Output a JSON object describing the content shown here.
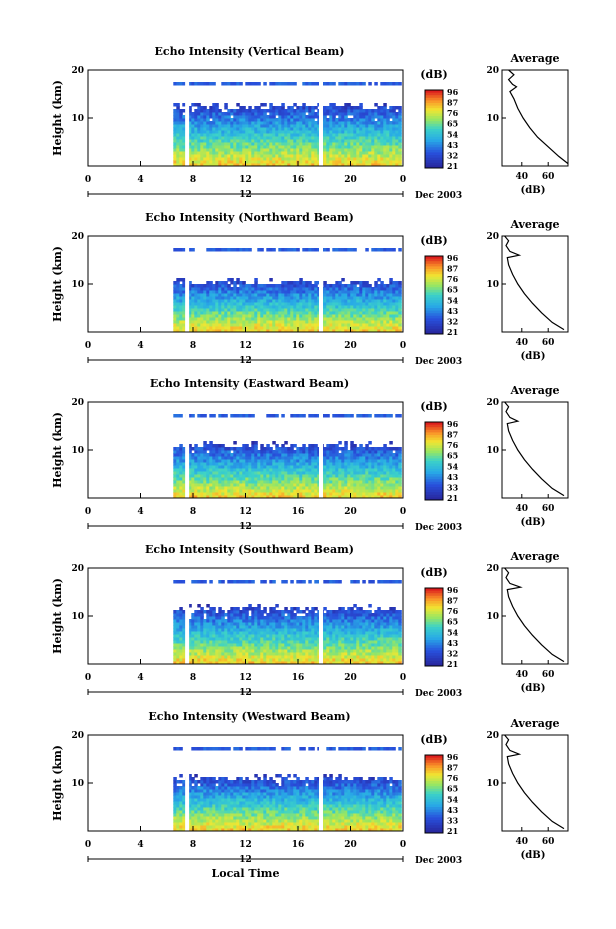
{
  "chart_data": [
    {
      "type": "heatmap",
      "title": "Echo Intensity (Vertical Beam)",
      "ylabel": "Height (km)",
      "x_ticks": [
        "0",
        "4",
        "8",
        "12",
        "16",
        "20",
        "0"
      ],
      "y_ticks": [
        "20",
        "10"
      ],
      "xlim": [
        0,
        24
      ],
      "ylim": [
        0,
        20
      ],
      "date_label": "Dec 2003",
      "noon_label": "12",
      "colorbar_unit": "(dB)",
      "colorbar_ticks": [
        "96",
        "87",
        "76",
        "65",
        "54",
        "43",
        "32",
        "21"
      ],
      "cloud_top_km": 13,
      "avg_panel": {
        "title": "Average",
        "xlabel": "(dB)",
        "x_ticks": [
          "40",
          "60"
        ],
        "y_ticks": [
          "20",
          "10"
        ],
        "xlim": [
          25,
          75
        ],
        "profile": [
          [
            75,
            0.5
          ],
          [
            68,
            2
          ],
          [
            60,
            4
          ],
          [
            52,
            6
          ],
          [
            46,
            8
          ],
          [
            41,
            10
          ],
          [
            37,
            12
          ],
          [
            34,
            14
          ],
          [
            31,
            15.5
          ],
          [
            36,
            16.5
          ],
          [
            33,
            17
          ],
          [
            30,
            18
          ],
          [
            34,
            19
          ],
          [
            30,
            20
          ]
        ]
      }
    },
    {
      "type": "heatmap",
      "title": "Echo Intensity (Northward Beam)",
      "ylabel": "Height (km)",
      "x_ticks": [
        "0",
        "4",
        "8",
        "12",
        "16",
        "20",
        "0"
      ],
      "y_ticks": [
        "20",
        "10"
      ],
      "xlim": [
        0,
        24
      ],
      "ylim": [
        0,
        20
      ],
      "date_label": "Dec 2003",
      "noon_label": "12",
      "colorbar_unit": "(dB)",
      "colorbar_ticks": [
        "96",
        "87",
        "76",
        "65",
        "54",
        "43",
        "32",
        "21"
      ],
      "cloud_top_km": 11,
      "avg_panel": {
        "title": "Average",
        "xlabel": "(dB)",
        "x_ticks": [
          "40",
          "60"
        ],
        "y_ticks": [
          "20",
          "10"
        ],
        "xlim": [
          25,
          75
        ],
        "profile": [
          [
            72,
            0.5
          ],
          [
            63,
            2
          ],
          [
            55,
            4
          ],
          [
            48,
            6
          ],
          [
            42,
            8
          ],
          [
            37,
            10
          ],
          [
            33,
            12
          ],
          [
            30,
            14
          ],
          [
            29,
            15.5
          ],
          [
            38,
            16
          ],
          [
            31,
            16.8
          ],
          [
            28,
            18
          ],
          [
            30,
            19
          ],
          [
            27,
            20
          ]
        ]
      }
    },
    {
      "type": "heatmap",
      "title": "Echo Intensity (Eastward Beam)",
      "ylabel": "Height (km)",
      "x_ticks": [
        "0",
        "4",
        "8",
        "12",
        "16",
        "20",
        "0"
      ],
      "y_ticks": [
        "20",
        "10"
      ],
      "xlim": [
        0,
        24
      ],
      "ylim": [
        0,
        20
      ],
      "date_label": "Dec 2003",
      "noon_label": "12",
      "colorbar_unit": "(dB)",
      "colorbar_ticks": [
        "96",
        "87",
        "76",
        "65",
        "54",
        "43",
        "33",
        "21"
      ],
      "cloud_top_km": 11.5,
      "avg_panel": {
        "title": "Average",
        "xlabel": "(dB)",
        "x_ticks": [
          "40",
          "60"
        ],
        "y_ticks": [
          "20",
          "10"
        ],
        "xlim": [
          25,
          75
        ],
        "profile": [
          [
            72,
            0.5
          ],
          [
            63,
            2
          ],
          [
            55,
            4
          ],
          [
            48,
            6
          ],
          [
            42,
            8
          ],
          [
            37,
            10
          ],
          [
            33,
            12
          ],
          [
            30,
            14
          ],
          [
            29,
            15.5
          ],
          [
            37,
            16
          ],
          [
            31,
            16.8
          ],
          [
            28,
            18
          ],
          [
            30,
            19
          ],
          [
            27,
            20
          ]
        ]
      }
    },
    {
      "type": "heatmap",
      "title": "Echo Intensity (Southward Beam)",
      "ylabel": "Height (km)",
      "x_ticks": [
        "0",
        "4",
        "8",
        "12",
        "16",
        "20",
        "0"
      ],
      "y_ticks": [
        "20",
        "10"
      ],
      "xlim": [
        0,
        24
      ],
      "ylim": [
        0,
        20
      ],
      "date_label": "Dec 2003",
      "noon_label": "12",
      "colorbar_unit": "(dB)",
      "colorbar_ticks": [
        "96",
        "87",
        "76",
        "65",
        "54",
        "43",
        "32",
        "21"
      ],
      "cloud_top_km": 12,
      "avg_panel": {
        "title": "Average",
        "xlabel": "(dB)",
        "x_ticks": [
          "40",
          "60"
        ],
        "y_ticks": [
          "20",
          "10"
        ],
        "xlim": [
          25,
          75
        ],
        "profile": [
          [
            72,
            0.5
          ],
          [
            63,
            2
          ],
          [
            55,
            4
          ],
          [
            48,
            6
          ],
          [
            42,
            8
          ],
          [
            37,
            10
          ],
          [
            33,
            12
          ],
          [
            30,
            14
          ],
          [
            29,
            15.5
          ],
          [
            39,
            16
          ],
          [
            31,
            16.8
          ],
          [
            28,
            18
          ],
          [
            30,
            19
          ],
          [
            27,
            20
          ]
        ]
      }
    },
    {
      "type": "heatmap",
      "title": "Echo Intensity (Westward Beam)",
      "ylabel": "Height (km)",
      "x_ticks": [
        "0",
        "4",
        "8",
        "12",
        "16",
        "20",
        "0"
      ],
      "y_ticks": [
        "20",
        "10"
      ],
      "xlim": [
        0,
        24
      ],
      "ylim": [
        0,
        20
      ],
      "date_label": "Dec 2003",
      "noon_label": "12",
      "colorbar_unit": "(dB)",
      "colorbar_ticks": [
        "96",
        "87",
        "76",
        "65",
        "54",
        "43",
        "33",
        "21"
      ],
      "cloud_top_km": 11.5,
      "xlabel": "Local Time",
      "avg_panel": {
        "title": "Average",
        "xlabel": "(dB)",
        "x_ticks": [
          "40",
          "60"
        ],
        "y_ticks": [
          "20",
          "10"
        ],
        "xlim": [
          25,
          75
        ],
        "profile": [
          [
            72,
            0.5
          ],
          [
            63,
            2
          ],
          [
            55,
            4
          ],
          [
            48,
            6
          ],
          [
            42,
            8
          ],
          [
            37,
            10
          ],
          [
            33,
            12
          ],
          [
            30,
            14
          ],
          [
            29,
            15.5
          ],
          [
            38,
            16
          ],
          [
            31,
            16.8
          ],
          [
            28,
            18
          ],
          [
            30,
            19
          ],
          [
            27,
            20
          ]
        ]
      }
    }
  ]
}
